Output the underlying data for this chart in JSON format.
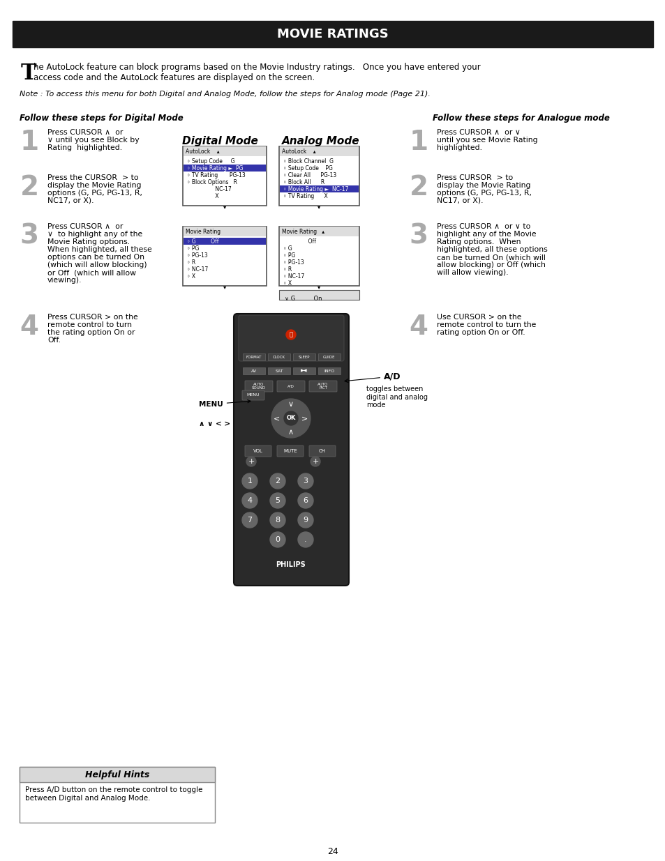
{
  "title": "MOVIE RATINGS",
  "title_bg": "#1a1a1a",
  "title_color": "#ffffff",
  "page_bg": "#ffffff",
  "page_number": "24",
  "intro_drop_cap": "T",
  "intro_text": "he AutoLock feature can block programs based on the Movie Industry ratings.   Once you have entered your\naccess code and the AutoLock features are displayed on the screen.",
  "note_text": "Note : To access this menu for both Digital and Analog Mode, follow the steps for Analog mode (Page 21).",
  "left_heading": "Follow these steps for Digital Mode",
  "right_heading": "Follow these steps for Analogue mode",
  "digital_mode_label": "Digital Mode",
  "analog_mode_label": "Analog Mode",
  "left_steps": [
    "Press CURSOR ∧  or\n∨ until you see Block by\nRating  highlighted.",
    "Press the CURSOR  > to\ndisplay the Movie Rating\noptions (G, PG, PG-13, R,\nNC17, or X).",
    "Press CURSOR ∧  or\n∨  to highlight any of the\nMovie Rating options.\nWhen highlighted, all these\noptions can be turned On\n(which will allow blocking)\nor Off  (which will allow\nviewing).",
    "Press CURSOR > on the\nremote control to turn\nthe rating option On or\nOff."
  ],
  "right_steps": [
    "Press CURSOR ∧  or ∨\nuntil you see Movie Rating\nhighlighted.",
    "Press CURSOR  > to\ndisplay the Movie Rating\noptions (G, PG, PG-13, R,\nNC17, or X).",
    "Press CURSOR ∧  or ∨ to\nhighlight any of the Movie\nRating options.  When\nhighlighted, all these options\ncan be turned On (which will\nallow blocking) or Off (which\nwill allow viewing).",
    "Use CURSOR > on the\nremote control to turn the\nrating option On or Off."
  ],
  "ad_label": "A/D",
  "ad_desc": "toggles between\ndigital and analog\nmode",
  "menu_label": "MENU",
  "arrow_label": "∧ ∨ < >",
  "helpful_hints_title": "Helpful Hints",
  "helpful_hints_text": "Press A/D button on the remote control to toggle\nbetween Digital and Analog Mode.",
  "hint_bg": "#d8d8d8"
}
